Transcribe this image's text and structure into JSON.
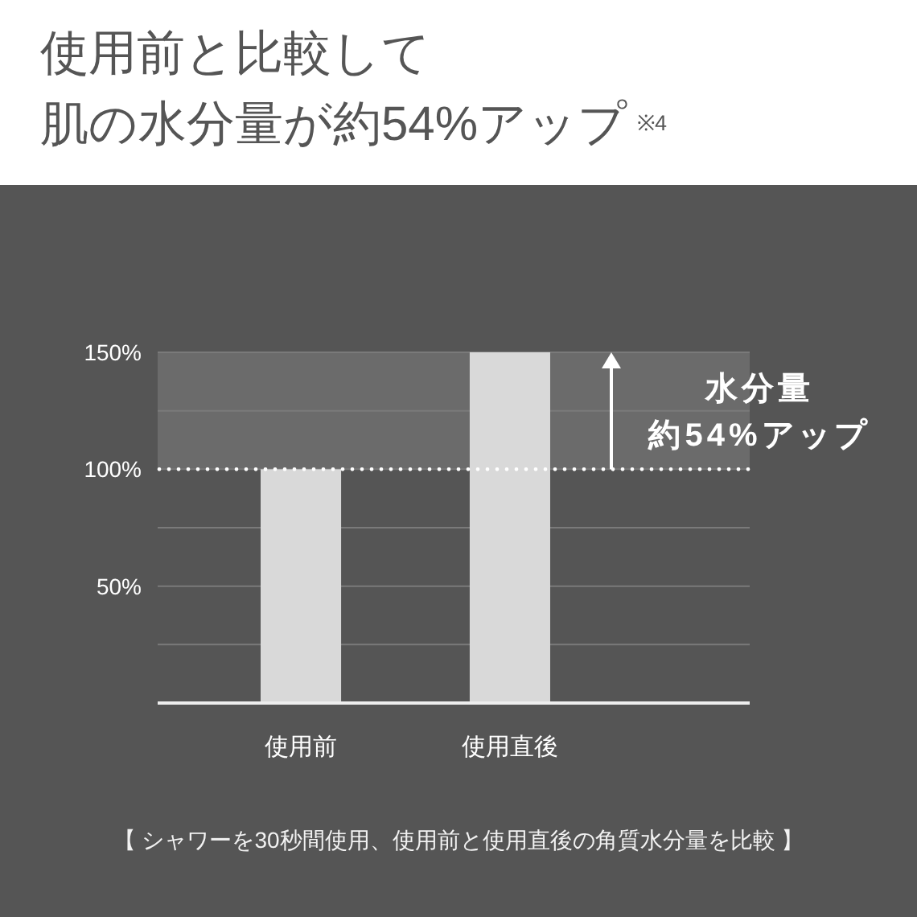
{
  "chart_data": {
    "type": "bar",
    "title": "使用前と比較して",
    "subtitle": "肌の水分量が約54%アップ$^{※4}$",
    "categories": [
      "使用前",
      "使用直後"
    ],
    "values": [
      100,
      150
    ],
    "color": "#d9d9d9",
    "ylim": [
      0,
      150
    ],
    "yticks": [
      {
        "value": 25,
        "label": null
      },
      {
        "value": 50,
        "label": "50%"
      },
      {
        "value": 75,
        "label": null
      },
      {
        "value": 100,
        "label": "100%"
      },
      {
        "value": 125,
        "label": null
      },
      {
        "value": 150,
        "label": "150%"
      }
    ],
    "grid": "y",
    "ref_lines": [
      {
        "axis": "y",
        "value": 100,
        "color": "#ffffff",
        "line_style": "dotted"
      }
    ],
    "bands": [
      {
        "axis": "y",
        "from": 100,
        "to": 150,
        "label": "水分量約54%アップ",
        "color": "#6b6b6b"
      }
    ],
    "annotations": [
      "【 シャワーを30秒間使用、使用前と使用直後の角質水分量を比較 】"
    ]
  }
}
